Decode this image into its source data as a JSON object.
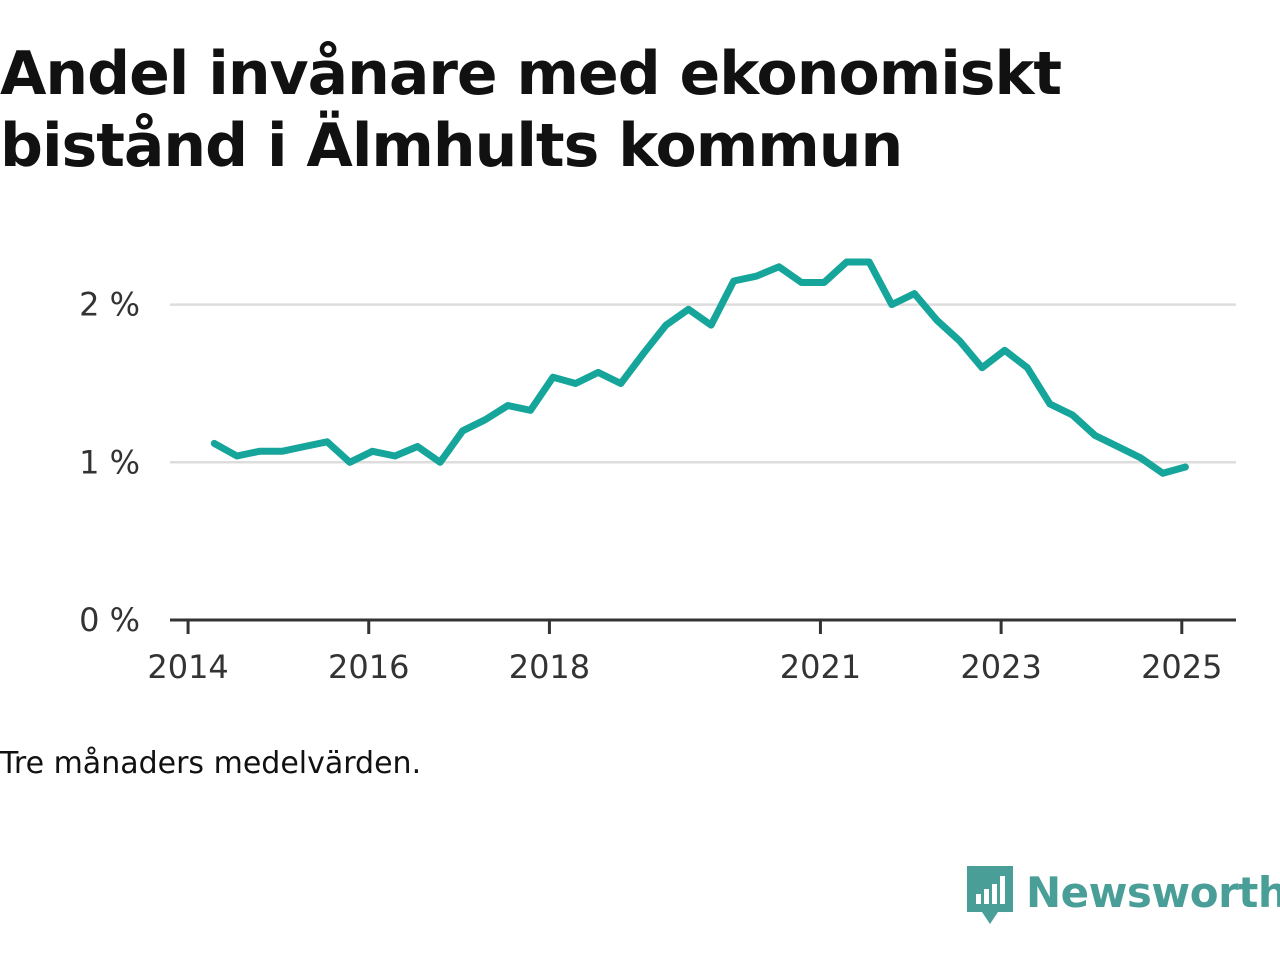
{
  "title": "Andel invånare med ekonomiskt bistånd i Älmhults kommun",
  "footnote": "Tre månaders medelvärden.",
  "brand": {
    "name": "Newsworthy",
    "color": "#4a9e98"
  },
  "colors": {
    "line": "#16a59a",
    "grid": "#dddddd",
    "axis": "#333333"
  },
  "chart_data": {
    "type": "line",
    "title": "Andel invånare med ekonomiskt bistånd i Älmhults kommun",
    "xlabel": "",
    "ylabel": "",
    "x_ticks": [
      {
        "label": "2014",
        "value": 2014.0
      },
      {
        "label": "2016",
        "value": 2016.0
      },
      {
        "label": "2018",
        "value": 2018.0
      },
      {
        "label": "2021",
        "value": 2021.0
      },
      {
        "label": "2023",
        "value": 2023.0
      },
      {
        "label": "2025",
        "value": 2025.0
      }
    ],
    "y_ticks": [
      {
        "label": "0 %",
        "value": 0
      },
      {
        "label": "1 %",
        "value": 1
      },
      {
        "label": "2 %",
        "value": 2
      }
    ],
    "xlim": [
      2013.8,
      2025.6
    ],
    "ylim": [
      0,
      2.6
    ],
    "grid": true,
    "legend": "none",
    "series": [
      {
        "x": [
          2014.29,
          2014.54,
          2014.79,
          2015.04,
          2015.29,
          2015.54,
          2015.79,
          2016.04,
          2016.29,
          2016.54,
          2016.79,
          2017.04,
          2017.29,
          2017.54,
          2017.79,
          2018.04,
          2018.29,
          2018.54,
          2018.79,
          2019.04,
          2019.29,
          2019.54,
          2019.79,
          2020.04,
          2020.29,
          2020.54,
          2020.79,
          2021.04,
          2021.29,
          2021.54,
          2021.79,
          2022.04,
          2022.29,
          2022.54,
          2022.79,
          2023.04,
          2023.29,
          2023.54,
          2023.79,
          2024.04,
          2024.29,
          2024.54,
          2024.79,
          2025.04
        ],
        "y": [
          1.12,
          1.04,
          1.07,
          1.07,
          1.1,
          1.13,
          1.0,
          1.07,
          1.04,
          1.1,
          1.0,
          1.2,
          1.27,
          1.36,
          1.33,
          1.54,
          1.5,
          1.57,
          1.5,
          1.69,
          1.87,
          1.97,
          1.87,
          2.15,
          2.18,
          2.24,
          2.14,
          2.14,
          2.27,
          2.27,
          2.0,
          2.07,
          1.9,
          1.77,
          1.6,
          1.71,
          1.6,
          1.37,
          1.3,
          1.17,
          1.1,
          1.03,
          0.93,
          0.97
        ]
      }
    ]
  }
}
